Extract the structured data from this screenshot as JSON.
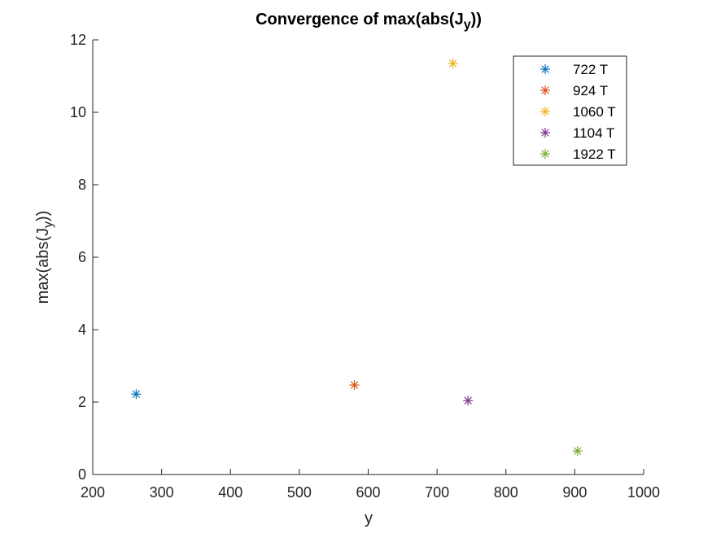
{
  "chart_data": {
    "type": "scatter",
    "title": {
      "main": "Convergence of max(abs(J",
      "sub": "y",
      "tail": "))"
    },
    "xlabel": "y",
    "ylabel": {
      "main": "max(abs(J",
      "sub": "y",
      "tail": "))"
    },
    "xlim": [
      200,
      1000
    ],
    "ylim": [
      0,
      12
    ],
    "xticks": [
      200,
      300,
      400,
      500,
      600,
      700,
      800,
      900,
      1000
    ],
    "yticks": [
      0,
      2,
      4,
      6,
      8,
      10,
      12
    ],
    "grid": false,
    "marker": "asterisk",
    "legend_position": "top-right",
    "series": [
      {
        "name": "722 T",
        "color": "#0072BD",
        "points": [
          [
            263,
            2.22
          ]
        ]
      },
      {
        "name": "924 T",
        "color": "#D95319",
        "points": [
          [
            580,
            2.47
          ]
        ]
      },
      {
        "name": "1060 T",
        "color": "#EDB120",
        "points": [
          [
            723,
            11.35
          ]
        ]
      },
      {
        "name": "1104 T",
        "color": "#7E2F8E",
        "points": [
          [
            745,
            2.04
          ]
        ]
      },
      {
        "name": "1922 T",
        "color": "#77AC30",
        "points": [
          [
            904,
            0.65
          ]
        ]
      }
    ]
  }
}
